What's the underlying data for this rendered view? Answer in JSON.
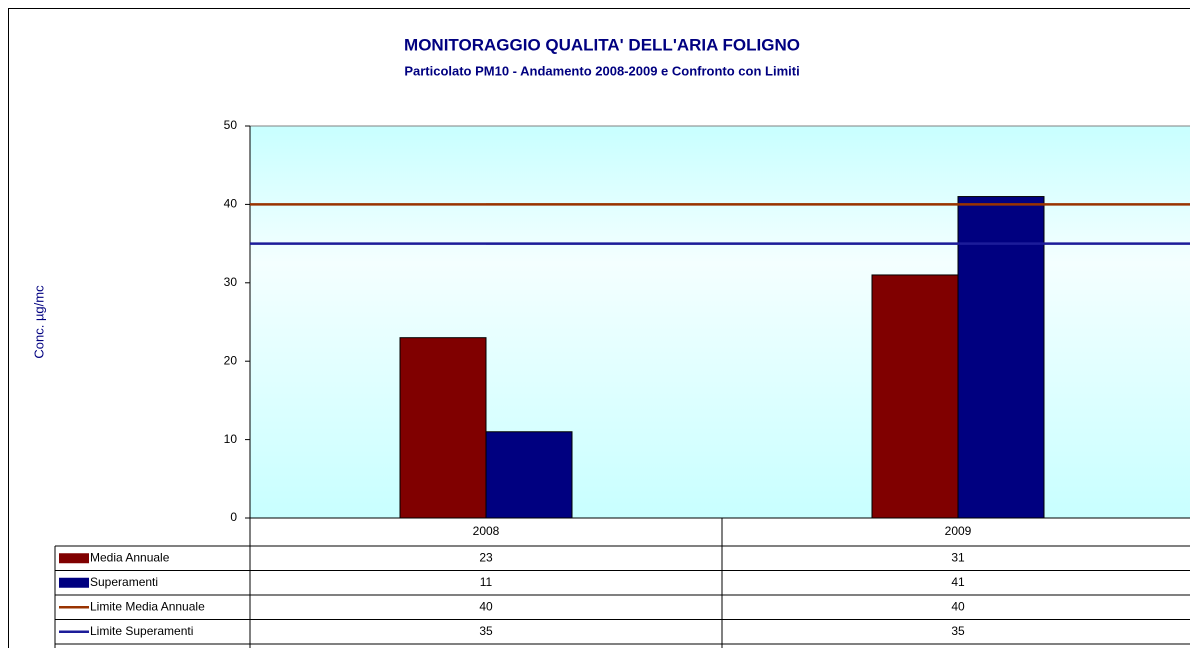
{
  "chart_data": {
    "type": "bar",
    "title": "MONITORAGGIO QUALITA' DELL'ARIA  FOLIGNO",
    "subtitle": "Particolato PM10 - Andamento 2008-2009 e Confronto con Limiti",
    "y_label": "Conc. µg/mc",
    "categories": [
      "2008",
      "2009"
    ],
    "series": [
      {
        "name": "Media Annuale",
        "type": "bar",
        "color": "#800000",
        "values": [
          23,
          31
        ]
      },
      {
        "name": "Superamenti",
        "type": "bar",
        "color": "#000080",
        "values": [
          11,
          41
        ]
      },
      {
        "name": "Limite Media Annuale",
        "type": "line",
        "color": "#993300",
        "values": [
          40,
          40
        ]
      },
      {
        "name": "Limite Superamenti",
        "type": "line",
        "color": "#1c1c99",
        "values": [
          35,
          35
        ]
      }
    ],
    "ylim": [
      0,
      50
    ],
    "yticks": [
      0,
      10,
      20,
      30,
      40,
      50
    ],
    "grid": false,
    "data_table": true
  }
}
